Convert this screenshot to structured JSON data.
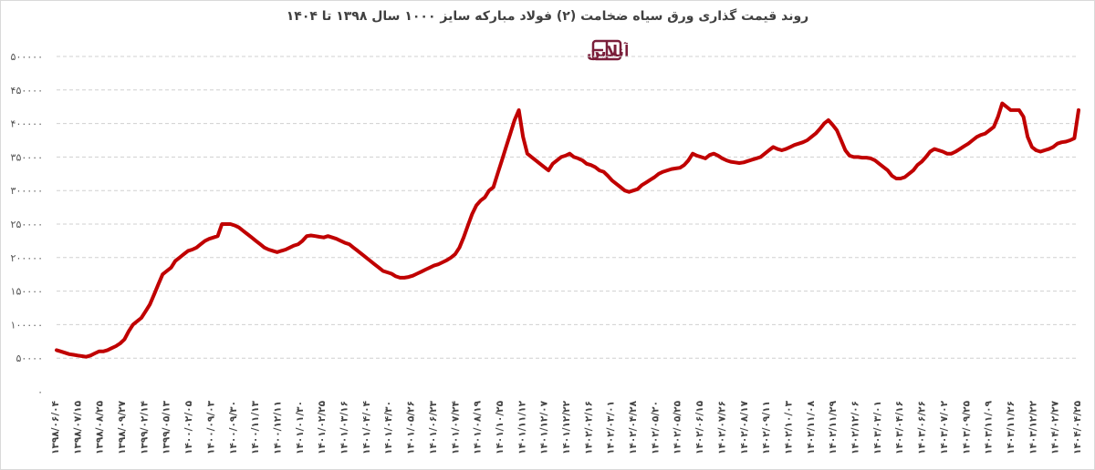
{
  "chart_data": {
    "type": "line",
    "title": "روند قیمت گذاری ورق سیاه ضخامت (۲) فولاد مبارکه سایز ۱۰۰۰ سال ۱۳۹۸ تا ۱۴۰۴",
    "xlabel": "",
    "ylabel": "",
    "ylim": [
      0,
      500000
    ],
    "y_ticks": [
      0,
      50000,
      100000,
      150000,
      200000,
      250000,
      300000,
      350000,
      400000,
      450000,
      500000
    ],
    "y_tick_labels": [
      "0",
      "50000",
      "100000",
      "150000",
      "200000",
      "250000",
      "300000",
      "350000",
      "400000",
      "450000",
      "500000"
    ],
    "grid": "horizontal dashed",
    "legend": "none",
    "line_color": "#c00000",
    "x_tick_labels": [
      "1398/06/04",
      "1398/07/15",
      "1398/08/25",
      "1398/09/27",
      "1399/02/14",
      "1399/05/13",
      "1400/02/05",
      "1400/09/03",
      "1400/09/30",
      "1400/11/13",
      "1400/12/11",
      "1401/01/30",
      "1401/02/25",
      "1401/03/16",
      "1401/04/04",
      "1401/04/30",
      "1401/05/26",
      "1401/06/23",
      "1401/07/24",
      "1401/08/19",
      "1401/10/25",
      "1401/11/12",
      "1401/12/07",
      "1401/12/22",
      "1402/02/16",
      "1402/03/01",
      "1402/04/28",
      "1402/05/20",
      "1402/05/25",
      "1402/06/15",
      "1402/07/26",
      "1402/08/17",
      "1402/09/11",
      "1402/10/03",
      "1402/11/08",
      "1402/11/29",
      "1402/12/06",
      "1403/03/01",
      "1403/04/16",
      "1403/06/26",
      "1403/07/02",
      "1403/09/25",
      "1403/11/09",
      "1403/11/26",
      "1403/12/22",
      "1404/02/27",
      "1404/04/25"
    ],
    "values": [
      62000,
      60000,
      58000,
      56000,
      55000,
      54000,
      53000,
      52000,
      54000,
      57000,
      60000,
      60000,
      62000,
      65000,
      68000,
      72000,
      78000,
      90000,
      100000,
      105000,
      110000,
      120000,
      130000,
      145000,
      160000,
      175000,
      180000,
      185000,
      195000,
      200000,
      205000,
      210000,
      212000,
      215000,
      220000,
      225000,
      228000,
      230000,
      232000,
      250000,
      250000,
      250000,
      248000,
      245000,
      240000,
      235000,
      230000,
      225000,
      220000,
      215000,
      212000,
      210000,
      208000,
      210000,
      212000,
      215000,
      218000,
      220000,
      225000,
      232000,
      233000,
      232000,
      231000,
      230000,
      232000,
      230000,
      228000,
      225000,
      222000,
      220000,
      215000,
      210000,
      205000,
      200000,
      195000,
      190000,
      185000,
      180000,
      178000,
      176000,
      172000,
      170000,
      170000,
      171000,
      173000,
      176000,
      179000,
      182000,
      185000,
      188000,
      190000,
      193000,
      196000,
      200000,
      205000,
      215000,
      230000,
      248000,
      265000,
      278000,
      285000,
      290000,
      300000,
      305000,
      325000,
      345000,
      365000,
      385000,
      405000,
      420000,
      380000,
      355000,
      350000,
      345000,
      340000,
      335000,
      330000,
      340000,
      345000,
      350000,
      352000,
      355000,
      350000,
      348000,
      345000,
      340000,
      338000,
      335000,
      330000,
      328000,
      322000,
      315000,
      310000,
      305000,
      300000,
      298000,
      300000,
      302000,
      308000,
      312000,
      316000,
      320000,
      325000,
      328000,
      330000,
      332000,
      333000,
      334000,
      338000,
      345000,
      355000,
      352000,
      350000,
      348000,
      353000,
      355000,
      352000,
      348000,
      345000,
      343000,
      342000,
      341000,
      342000,
      344000,
      346000,
      348000,
      350000,
      355000,
      360000,
      365000,
      362000,
      360000,
      362000,
      365000,
      368000,
      370000,
      372000,
      375000,
      380000,
      385000,
      392000,
      400000,
      405000,
      398000,
      390000,
      375000,
      360000,
      352000,
      350000,
      350000,
      349000,
      349000,
      348000,
      345000,
      340000,
      335000,
      330000,
      322000,
      318000,
      318000,
      320000,
      325000,
      330000,
      338000,
      343000,
      350000,
      358000,
      362000,
      360000,
      358000,
      355000,
      355000,
      358000,
      362000,
      366000,
      370000,
      375000,
      380000,
      383000,
      385000,
      390000,
      395000,
      410000,
      430000,
      425000,
      420000,
      420000,
      420000,
      410000,
      380000,
      365000,
      360000,
      358000,
      360000,
      362000,
      365000,
      370000,
      372000,
      373000,
      375000,
      378000,
      420000
    ]
  },
  "logo": {
    "text": "آهن آنلاین"
  }
}
